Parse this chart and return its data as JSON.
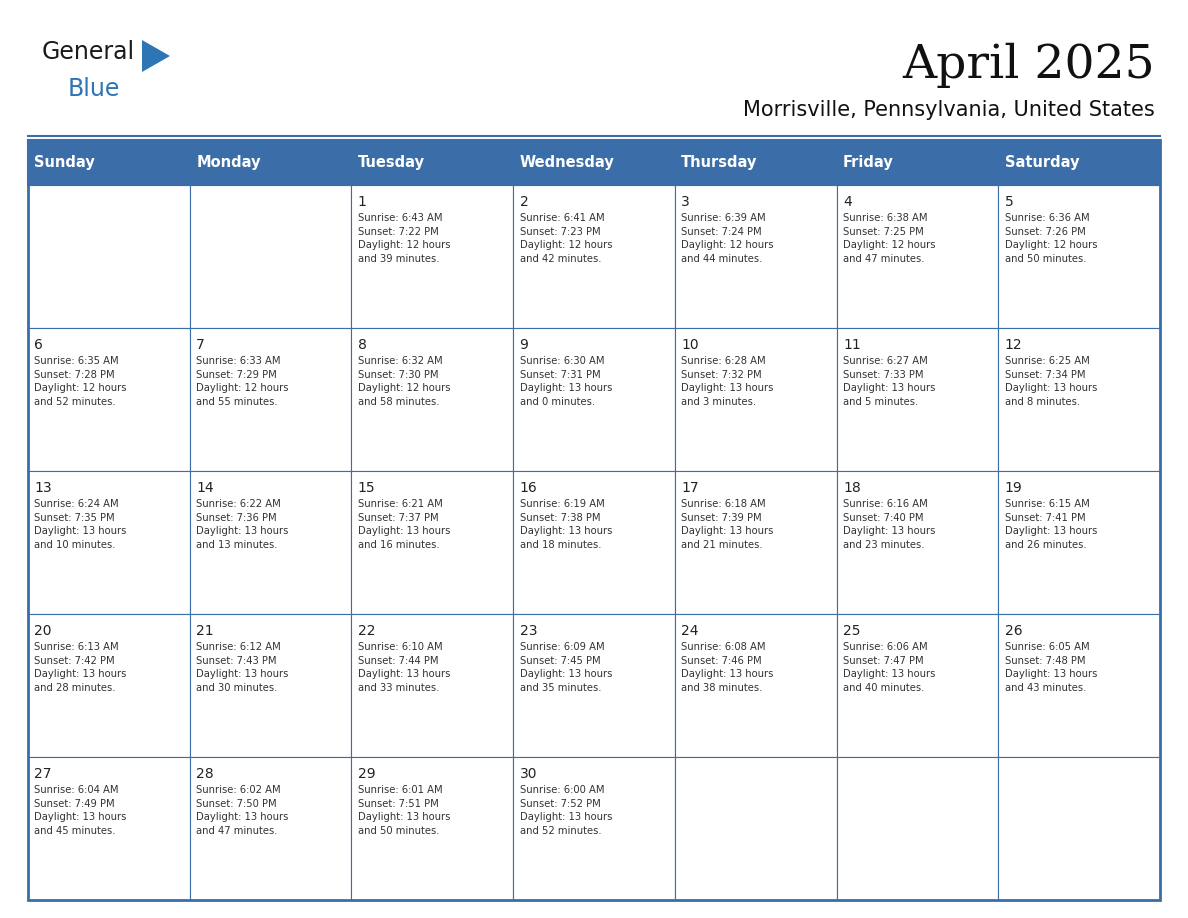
{
  "title": "April 2025",
  "subtitle": "Morrisville, Pennsylvania, United States",
  "header_bg_color": "#3B6EA8",
  "header_text_color": "#FFFFFF",
  "border_color": "#3B6EA8",
  "day_number_color": "#222222",
  "cell_text_color": "#333333",
  "days_of_week": [
    "Sunday",
    "Monday",
    "Tuesday",
    "Wednesday",
    "Thursday",
    "Friday",
    "Saturday"
  ],
  "logo_color1": "#1a1a1a",
  "logo_color2": "#2E75B6",
  "logo_triangle_color": "#2E75B6",
  "weeks": [
    [
      {
        "day": 0,
        "text": ""
      },
      {
        "day": 0,
        "text": ""
      },
      {
        "day": 1,
        "text": "Sunrise: 6:43 AM\nSunset: 7:22 PM\nDaylight: 12 hours\nand 39 minutes."
      },
      {
        "day": 2,
        "text": "Sunrise: 6:41 AM\nSunset: 7:23 PM\nDaylight: 12 hours\nand 42 minutes."
      },
      {
        "day": 3,
        "text": "Sunrise: 6:39 AM\nSunset: 7:24 PM\nDaylight: 12 hours\nand 44 minutes."
      },
      {
        "day": 4,
        "text": "Sunrise: 6:38 AM\nSunset: 7:25 PM\nDaylight: 12 hours\nand 47 minutes."
      },
      {
        "day": 5,
        "text": "Sunrise: 6:36 AM\nSunset: 7:26 PM\nDaylight: 12 hours\nand 50 minutes."
      }
    ],
    [
      {
        "day": 6,
        "text": "Sunrise: 6:35 AM\nSunset: 7:28 PM\nDaylight: 12 hours\nand 52 minutes."
      },
      {
        "day": 7,
        "text": "Sunrise: 6:33 AM\nSunset: 7:29 PM\nDaylight: 12 hours\nand 55 minutes."
      },
      {
        "day": 8,
        "text": "Sunrise: 6:32 AM\nSunset: 7:30 PM\nDaylight: 12 hours\nand 58 minutes."
      },
      {
        "day": 9,
        "text": "Sunrise: 6:30 AM\nSunset: 7:31 PM\nDaylight: 13 hours\nand 0 minutes."
      },
      {
        "day": 10,
        "text": "Sunrise: 6:28 AM\nSunset: 7:32 PM\nDaylight: 13 hours\nand 3 minutes."
      },
      {
        "day": 11,
        "text": "Sunrise: 6:27 AM\nSunset: 7:33 PM\nDaylight: 13 hours\nand 5 minutes."
      },
      {
        "day": 12,
        "text": "Sunrise: 6:25 AM\nSunset: 7:34 PM\nDaylight: 13 hours\nand 8 minutes."
      }
    ],
    [
      {
        "day": 13,
        "text": "Sunrise: 6:24 AM\nSunset: 7:35 PM\nDaylight: 13 hours\nand 10 minutes."
      },
      {
        "day": 14,
        "text": "Sunrise: 6:22 AM\nSunset: 7:36 PM\nDaylight: 13 hours\nand 13 minutes."
      },
      {
        "day": 15,
        "text": "Sunrise: 6:21 AM\nSunset: 7:37 PM\nDaylight: 13 hours\nand 16 minutes."
      },
      {
        "day": 16,
        "text": "Sunrise: 6:19 AM\nSunset: 7:38 PM\nDaylight: 13 hours\nand 18 minutes."
      },
      {
        "day": 17,
        "text": "Sunrise: 6:18 AM\nSunset: 7:39 PM\nDaylight: 13 hours\nand 21 minutes."
      },
      {
        "day": 18,
        "text": "Sunrise: 6:16 AM\nSunset: 7:40 PM\nDaylight: 13 hours\nand 23 minutes."
      },
      {
        "day": 19,
        "text": "Sunrise: 6:15 AM\nSunset: 7:41 PM\nDaylight: 13 hours\nand 26 minutes."
      }
    ],
    [
      {
        "day": 20,
        "text": "Sunrise: 6:13 AM\nSunset: 7:42 PM\nDaylight: 13 hours\nand 28 minutes."
      },
      {
        "day": 21,
        "text": "Sunrise: 6:12 AM\nSunset: 7:43 PM\nDaylight: 13 hours\nand 30 minutes."
      },
      {
        "day": 22,
        "text": "Sunrise: 6:10 AM\nSunset: 7:44 PM\nDaylight: 13 hours\nand 33 minutes."
      },
      {
        "day": 23,
        "text": "Sunrise: 6:09 AM\nSunset: 7:45 PM\nDaylight: 13 hours\nand 35 minutes."
      },
      {
        "day": 24,
        "text": "Sunrise: 6:08 AM\nSunset: 7:46 PM\nDaylight: 13 hours\nand 38 minutes."
      },
      {
        "day": 25,
        "text": "Sunrise: 6:06 AM\nSunset: 7:47 PM\nDaylight: 13 hours\nand 40 minutes."
      },
      {
        "day": 26,
        "text": "Sunrise: 6:05 AM\nSunset: 7:48 PM\nDaylight: 13 hours\nand 43 minutes."
      }
    ],
    [
      {
        "day": 27,
        "text": "Sunrise: 6:04 AM\nSunset: 7:49 PM\nDaylight: 13 hours\nand 45 minutes."
      },
      {
        "day": 28,
        "text": "Sunrise: 6:02 AM\nSunset: 7:50 PM\nDaylight: 13 hours\nand 47 minutes."
      },
      {
        "day": 29,
        "text": "Sunrise: 6:01 AM\nSunset: 7:51 PM\nDaylight: 13 hours\nand 50 minutes."
      },
      {
        "day": 30,
        "text": "Sunrise: 6:00 AM\nSunset: 7:52 PM\nDaylight: 13 hours\nand 52 minutes."
      },
      {
        "day": 0,
        "text": ""
      },
      {
        "day": 0,
        "text": ""
      },
      {
        "day": 0,
        "text": ""
      }
    ]
  ]
}
